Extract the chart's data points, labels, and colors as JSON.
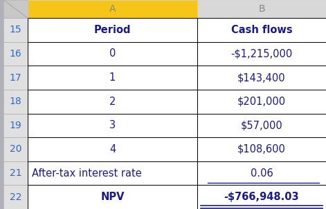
{
  "rows": [
    {
      "row_num": "15",
      "col_a": "Period",
      "col_b": "Cash flows",
      "bold_a": true,
      "bold_b": true,
      "align_a": "center",
      "align_b": "center"
    },
    {
      "row_num": "16",
      "col_a": "0",
      "col_b": "-$1,215,000",
      "bold_a": false,
      "bold_b": false,
      "align_a": "center",
      "align_b": "center"
    },
    {
      "row_num": "17",
      "col_a": "1",
      "col_b": "$143,400",
      "bold_a": false,
      "bold_b": false,
      "align_a": "center",
      "align_b": "center"
    },
    {
      "row_num": "18",
      "col_a": "2",
      "col_b": "$201,000",
      "bold_a": false,
      "bold_b": false,
      "align_a": "center",
      "align_b": "center"
    },
    {
      "row_num": "19",
      "col_a": "3",
      "col_b": "$57,000",
      "bold_a": false,
      "bold_b": false,
      "align_a": "center",
      "align_b": "center"
    },
    {
      "row_num": "20",
      "col_a": "4",
      "col_b": "$108,600",
      "bold_a": false,
      "bold_b": false,
      "align_a": "center",
      "align_b": "center"
    },
    {
      "row_num": "21",
      "col_a": "After-tax interest rate",
      "col_b": "0.06",
      "bold_a": false,
      "bold_b": false,
      "align_a": "left",
      "align_b": "center",
      "underline_b": true
    },
    {
      "row_num": "22",
      "col_a": "NPV",
      "col_b": "-$766,948.03",
      "bold_a": true,
      "bold_b": true,
      "align_a": "center",
      "align_b": "center",
      "double_underline_b": true
    }
  ],
  "header_col_a": "A",
  "header_col_b": "B",
  "header_a_bg": "#F5C518",
  "header_b_bg": "#D8D8D8",
  "corner_bg": "#C8C8C8",
  "row_num_bg": "#E0E0E0",
  "cell_bg": "#FFFFFF",
  "text_color": "#1A1A8C",
  "row_num_color": "#3366CC",
  "border_color": "#000000",
  "header_text_color": "#888888"
}
